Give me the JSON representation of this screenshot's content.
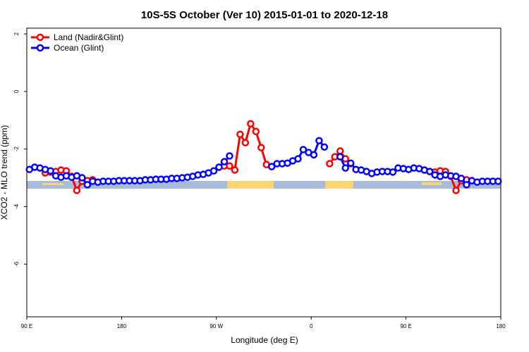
{
  "chart_data": {
    "type": "line",
    "title": "10S-5S October (Ver 10)   2015-01-01 to 2020-12-18",
    "xlabel": "Longitude (deg E)",
    "ylabel": "XCO2 - MLO trend (ppm)",
    "legend": "top-left",
    "xlim": [
      90,
      540
    ],
    "xticks": [
      {
        "value": 90,
        "label": "90 E"
      },
      180,
      {
        "value": 270,
        "label": "90 W"
      },
      {
        "value": 360,
        "label": "0"
      },
      {
        "value": 450,
        "label": "90 E"
      },
      180
    ],
    "ylim": [
      -7.83,
      2.2
    ],
    "yticks": [
      2,
      0,
      -2,
      -4,
      -6
    ],
    "x": [
      92.5,
      97.5,
      102.5,
      107.5,
      112.5,
      117.5,
      122.5,
      127.5,
      132.5,
      137.5,
      142.5,
      147.5,
      152.5,
      157.5,
      162.5,
      167.5,
      172.5,
      177.5,
      182.5,
      187.5,
      192.5,
      197.5,
      202.5,
      207.5,
      212.5,
      217.5,
      222.5,
      227.5,
      232.5,
      237.5,
      242.5,
      247.5,
      252.5,
      257.5,
      262.5,
      267.5,
      272.5,
      277.5,
      282.5,
      287.5,
      292.5,
      297.5,
      302.5,
      307.5,
      312.5,
      317.5,
      322.5,
      327.5,
      332.5,
      337.5,
      342.5,
      347.5,
      352.5,
      357.5,
      362.5,
      367.5,
      372.5,
      377.5,
      382.5,
      387.5,
      392.5,
      397.5,
      402.5,
      407.5,
      412.5,
      417.5,
      422.5,
      427.5,
      432.5,
      437.5,
      442.5,
      447.5,
      452.5,
      457.5,
      462.5,
      467.5,
      472.5,
      477.5,
      482.5,
      487.5,
      492.5,
      497.5,
      502.5,
      507.5,
      512.5,
      517.5,
      522.5,
      527.5,
      532.5,
      537.5
    ],
    "series": [
      {
        "name": "Land (Nadir&Glint)",
        "color": "#ff0000",
        "values": [
          null,
          null,
          null,
          -2.83,
          -2.8,
          -2.78,
          -2.73,
          -2.76,
          -2.95,
          -3.44,
          -3.12,
          -3.1,
          -3.07,
          null,
          null,
          null,
          null,
          null,
          null,
          null,
          null,
          null,
          null,
          null,
          null,
          null,
          null,
          null,
          null,
          null,
          null,
          null,
          null,
          null,
          null,
          null,
          null,
          -2.59,
          -2.59,
          -2.73,
          -1.49,
          -1.78,
          -1.12,
          -1.39,
          -1.95,
          -2.54,
          -2.61,
          null,
          null,
          null,
          null,
          null,
          null,
          null,
          null,
          null,
          null,
          -2.51,
          -2.27,
          -2.07,
          -2.34,
          -2.51,
          null,
          null,
          null,
          null,
          null,
          null,
          null,
          null,
          null,
          null,
          null,
          null,
          null,
          -2.73,
          -2.78,
          -2.8,
          -2.76,
          -2.78,
          -2.95,
          -3.44,
          -3.1,
          -3.07,
          -3.1,
          null,
          null,
          null,
          null,
          null
        ]
      },
      {
        "name": "Ocean (Glint)",
        "color": "#0000ff",
        "values": [
          -2.71,
          -2.63,
          -2.66,
          -2.71,
          -2.76,
          -2.93,
          -2.98,
          -2.93,
          -2.98,
          -2.93,
          -3.0,
          -3.24,
          -3.12,
          -3.15,
          -3.12,
          -3.12,
          -3.12,
          -3.1,
          -3.1,
          -3.1,
          -3.1,
          -3.1,
          -3.07,
          -3.07,
          -3.05,
          -3.05,
          -3.05,
          -3.02,
          -3.02,
          -3.0,
          -2.98,
          -2.95,
          -2.9,
          -2.88,
          -2.83,
          -2.76,
          -2.63,
          -2.44,
          -2.24,
          null,
          null,
          null,
          null,
          null,
          null,
          null,
          -2.61,
          -2.51,
          -2.51,
          -2.49,
          -2.41,
          -2.34,
          -2.02,
          -2.12,
          -2.2,
          -1.71,
          -1.93,
          null,
          null,
          -2.27,
          -2.66,
          -2.49,
          -2.71,
          -2.73,
          -2.78,
          -2.85,
          -2.8,
          -2.78,
          -2.78,
          -2.8,
          -2.66,
          -2.68,
          -2.71,
          -2.66,
          -2.68,
          -2.73,
          -2.78,
          -2.9,
          -2.95,
          -2.9,
          -2.93,
          -2.95,
          -3.02,
          -3.24,
          -3.1,
          -3.15,
          -3.12,
          -3.12,
          -3.12,
          -3.12
        ]
      }
    ]
  }
}
